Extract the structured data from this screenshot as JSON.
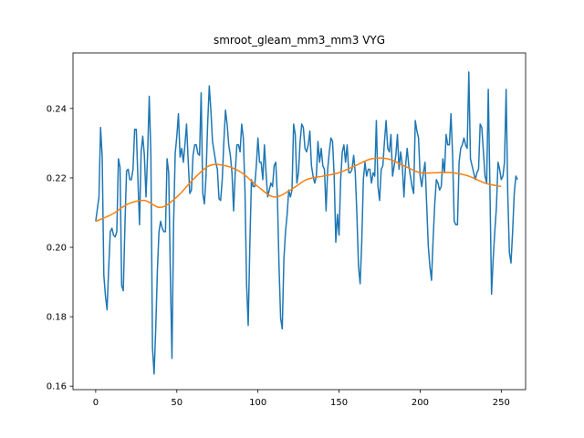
{
  "chart_data": {
    "type": "line",
    "title": "smroot_gleam_mm3_mm3 VYG",
    "xlabel": "",
    "ylabel": "",
    "xlim": [
      -14,
      265
    ],
    "ylim": [
      0.159,
      0.256
    ],
    "grid": false,
    "x_ticks": [
      0,
      50,
      100,
      150,
      200,
      250
    ],
    "x_tick_labels": [
      "0",
      "50",
      "100",
      "150",
      "200",
      "250"
    ],
    "y_ticks": [
      0.16,
      0.18,
      0.2,
      0.22,
      0.24
    ],
    "y_tick_labels": [
      "0.16",
      "0.18",
      "0.20",
      "0.22",
      "0.24"
    ],
    "colors": {
      "series1": "#1f77b4",
      "series2": "#ff7f0e",
      "axes": "#000000"
    },
    "series": [
      {
        "values": [
          0.2075,
          0.211,
          0.2145,
          0.2345,
          0.226,
          0.192,
          0.186,
          0.182,
          0.194,
          0.2045,
          0.2055,
          0.2035,
          0.203,
          0.2045,
          0.2255,
          0.223,
          0.189,
          0.1875,
          0.206,
          0.222,
          0.2225,
          0.2195,
          0.2195,
          0.2225,
          0.234,
          0.234,
          0.22,
          0.2065,
          0.2275,
          0.232,
          0.2265,
          0.2145,
          0.227,
          0.2435,
          0.227,
          0.171,
          0.1635,
          0.1765,
          0.193,
          0.2045,
          0.2075,
          0.2055,
          0.2045,
          0.2045,
          0.2255,
          0.2215,
          0.1925,
          0.168,
          0.2065,
          0.227,
          0.232,
          0.2385,
          0.226,
          0.2285,
          0.2245,
          0.2295,
          0.2355,
          0.225,
          0.2155,
          0.2165,
          0.2265,
          0.2295,
          0.2295,
          0.227,
          0.2265,
          0.2445,
          0.2155,
          0.2125,
          0.2205,
          0.2355,
          0.2465,
          0.2395,
          0.2305,
          0.2275,
          0.2245,
          0.2225,
          0.214,
          0.2135,
          0.2195,
          0.2305,
          0.2395,
          0.2355,
          0.2295,
          0.2265,
          0.2215,
          0.2105,
          0.2215,
          0.2295,
          0.2295,
          0.2275,
          0.2355,
          0.2315,
          0.2165,
          0.1895,
          0.1775,
          0.2005,
          0.2195,
          0.2175,
          0.2175,
          0.2235,
          0.2315,
          0.2245,
          0.2245,
          0.2195,
          0.2295,
          0.2215,
          0.2145,
          0.2165,
          0.2185,
          0.2175,
          0.2235,
          0.2245,
          0.2145,
          0.1945,
          0.1795,
          0.1765,
          0.1965,
          0.2045,
          0.2095,
          0.2165,
          0.2145,
          0.2165,
          0.2355,
          0.2325,
          0.2185,
          0.2215,
          0.2305,
          0.2355,
          0.2345,
          0.2285,
          0.2275,
          0.2295,
          0.2335,
          0.2235,
          0.2205,
          0.2185,
          0.2205,
          0.2305,
          0.2245,
          0.2285,
          0.2235,
          0.2225,
          0.2105,
          0.2225,
          0.2275,
          0.2315,
          0.2305,
          0.2205,
          0.2015,
          0.2095,
          0.2035,
          0.2195,
          0.2275,
          0.2295,
          0.2245,
          0.2295,
          0.2215,
          0.2215,
          0.2225,
          0.2265,
          0.2215,
          0.2095,
          0.1945,
          0.1895,
          0.2015,
          0.2195,
          0.2245,
          0.2205,
          0.2225,
          0.2225,
          0.2185,
          0.2215,
          0.2205,
          0.2365,
          0.2175,
          0.2135,
          0.2225,
          0.2235,
          0.2305,
          0.2365,
          0.2285,
          0.2275,
          0.2325,
          0.2205,
          0.2235,
          0.2265,
          0.2325,
          0.2225,
          0.2275,
          0.2235,
          0.2145,
          0.2235,
          0.2285,
          0.2235,
          0.2205,
          0.2175,
          0.2155,
          0.2365,
          0.2335,
          0.2315,
          0.2205,
          0.2175,
          0.2215,
          0.2245,
          0.2125,
          0.2005,
          0.1945,
          0.1905,
          0.2025,
          0.2125,
          0.2195,
          0.2185,
          0.2165,
          0.2175,
          0.2255,
          0.2215,
          0.2325,
          0.2295,
          0.2295,
          0.2385,
          0.2265,
          0.2075,
          0.2065,
          0.2065,
          0.2245,
          0.2285,
          0.2295,
          0.2315,
          0.2295,
          0.2285,
          0.2505,
          0.2255,
          0.2235,
          0.2215,
          0.2195,
          0.2215,
          0.2225,
          0.2355,
          0.2345,
          0.2275,
          0.2205,
          0.2185,
          0.2455,
          0.2175,
          0.1865,
          0.1965,
          0.2045,
          0.2115,
          0.2245,
          0.2225,
          0.2195,
          0.2205,
          0.2245,
          0.2455,
          0.2155,
          0.1985,
          0.1955,
          0.2045,
          0.2155,
          0.2205,
          0.2195
        ]
      },
      {
        "knots_x": [
          0,
          10,
          20,
          30,
          40,
          50,
          60,
          70,
          80,
          90,
          100,
          110,
          120,
          130,
          140,
          150,
          160,
          170,
          180,
          190,
          200,
          210,
          220,
          230,
          240,
          250
        ],
        "knots_y": [
          0.2075,
          0.2095,
          0.2125,
          0.2135,
          0.2115,
          0.2145,
          0.2195,
          0.2235,
          0.2235,
          0.2215,
          0.2175,
          0.2145,
          0.2165,
          0.2195,
          0.2205,
          0.2215,
          0.2235,
          0.2255,
          0.2255,
          0.2235,
          0.2215,
          0.2215,
          0.2215,
          0.2205,
          0.2185,
          0.2175
        ]
      }
    ]
  }
}
